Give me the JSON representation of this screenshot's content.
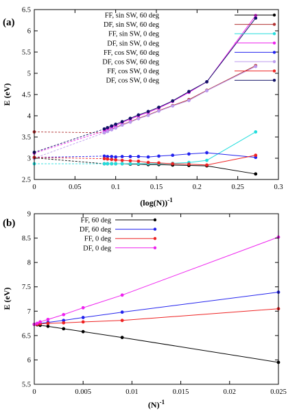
{
  "chart_data": [
    {
      "panel_label": "(a)",
      "type": "line",
      "xlabel": "(log(N))",
      "xlabel_sup": "-1",
      "ylabel": "E (eV)",
      "xlim": [
        0,
        0.3
      ],
      "ylim": [
        2.5,
        6.5
      ],
      "xticks": [
        0,
        0.05,
        0.1,
        0.15,
        0.2,
        0.25,
        0.3
      ],
      "xtick_labels": [
        "0",
        "0.05",
        "0.1",
        "0.15",
        "0.2",
        "0.25",
        "0.3"
      ],
      "yticks": [
        2.5,
        3,
        3.5,
        4,
        4.5,
        5,
        5.5,
        6,
        6.5
      ],
      "ytick_labels": [
        "2.5",
        "3",
        "3.5",
        "4",
        "4.5",
        "5",
        "5.5",
        "6",
        "6.5"
      ],
      "legend_position": "top-left",
      "extrapolation_dashed": true,
      "series": [
        {
          "name": "FF, sin SW, 60 deg",
          "color": "#000000",
          "x0": 3.01,
          "x": [
            0.086,
            0.09,
            0.095,
            0.1,
            0.108,
            0.118,
            0.128,
            0.14,
            0.153,
            0.17,
            0.19,
            0.212,
            0.272
          ],
          "y": [
            2.87,
            2.87,
            2.87,
            2.87,
            2.87,
            2.86,
            2.86,
            2.85,
            2.85,
            2.84,
            2.83,
            2.82,
            2.63
          ]
        },
        {
          "name": "DF, sin SW, 60 deg",
          "color": "#b03030",
          "x0": 3.62,
          "x": [
            0.086,
            0.09,
            0.095,
            0.1,
            0.108,
            0.118,
            0.128,
            0.14,
            0.153,
            0.17,
            0.19,
            0.212,
            0.272
          ],
          "y": [
            3.6,
            3.64,
            3.68,
            3.72,
            3.79,
            3.86,
            3.94,
            4.02,
            4.12,
            4.24,
            4.38,
            4.6,
            5.18
          ]
        },
        {
          "name": "FF, sin SW, 0 deg",
          "color": "#22dddd",
          "x0": 2.87,
          "x": [
            0.086,
            0.09,
            0.095,
            0.1,
            0.108,
            0.118,
            0.128,
            0.14,
            0.153,
            0.17,
            0.19,
            0.212,
            0.272
          ],
          "y": [
            2.87,
            2.87,
            2.87,
            2.87,
            2.87,
            2.87,
            2.87,
            2.87,
            2.87,
            2.88,
            2.9,
            2.95,
            3.62
          ]
        },
        {
          "name": "DF, sin SW, 0 deg",
          "color": "#ee22ee",
          "x0": 3.12,
          "x": [
            0.086,
            0.09,
            0.095,
            0.1,
            0.108,
            0.118,
            0.128,
            0.14,
            0.153,
            0.17,
            0.19,
            0.212,
            0.272
          ],
          "y": [
            3.64,
            3.68,
            3.72,
            3.77,
            3.84,
            3.92,
            4.0,
            4.08,
            4.18,
            4.34,
            4.55,
            4.8,
            6.36
          ]
        },
        {
          "name": "FF, cos SW, 60 deg",
          "color": "#2222ee",
          "x0": 3.02,
          "x": [
            0.086,
            0.09,
            0.095,
            0.1,
            0.108,
            0.118,
            0.128,
            0.14,
            0.153,
            0.17,
            0.19,
            0.212,
            0.272
          ],
          "y": [
            3.05,
            3.04,
            3.04,
            3.03,
            3.04,
            3.04,
            3.04,
            3.03,
            3.05,
            3.07,
            3.1,
            3.13,
            3.02
          ]
        },
        {
          "name": "DF, cos SW, 60 deg",
          "color": "#bb99ee",
          "x0": 3.0,
          "x": [
            0.086,
            0.09,
            0.095,
            0.1,
            0.108,
            0.118,
            0.128,
            0.14,
            0.153,
            0.17,
            0.19,
            0.212,
            0.272
          ],
          "y": [
            3.6,
            3.63,
            3.67,
            3.71,
            3.78,
            3.85,
            3.93,
            4.01,
            4.11,
            4.23,
            4.36,
            4.59,
            5.16
          ]
        },
        {
          "name": "FF, cos SW, 0 deg",
          "color": "#ee2222",
          "x0": 3.02,
          "x": [
            0.086,
            0.09,
            0.095,
            0.1,
            0.108,
            0.118,
            0.128,
            0.14,
            0.153,
            0.17,
            0.19,
            0.212,
            0.272
          ],
          "y": [
            2.99,
            2.98,
            2.97,
            2.96,
            2.95,
            2.94,
            2.93,
            2.9,
            2.89,
            2.87,
            2.86,
            2.84,
            3.07
          ]
        },
        {
          "name": "DF, cos SW, 0 deg",
          "color": "#111166",
          "x0": 3.14,
          "x": [
            0.086,
            0.09,
            0.095,
            0.1,
            0.108,
            0.118,
            0.128,
            0.14,
            0.153,
            0.17,
            0.19,
            0.212,
            0.272
          ],
          "y": [
            3.69,
            3.72,
            3.76,
            3.8,
            3.86,
            3.94,
            4.02,
            4.1,
            4.2,
            4.35,
            4.57,
            4.8,
            6.3
          ]
        }
      ]
    },
    {
      "panel_label": "(b)",
      "type": "line",
      "xlabel": "(N)",
      "xlabel_sup": "-1",
      "ylabel": "E (eV)",
      "xlim": [
        0,
        0.025
      ],
      "ylim": [
        5.5,
        9
      ],
      "xticks": [
        0,
        0.005,
        0.01,
        0.015,
        0.02,
        0.025
      ],
      "xtick_labels": [
        "0",
        "0.005",
        "0.01",
        "0.015",
        "0.02",
        "0.025"
      ],
      "yticks": [
        5.5,
        6,
        6.5,
        7,
        7.5,
        8,
        8.5,
        9
      ],
      "ytick_labels": [
        "5.5",
        "6",
        "6.5",
        "7",
        "7.5",
        "8",
        "8.5",
        "9"
      ],
      "legend_position": "top-left",
      "extrapolation_dashed": false,
      "series": [
        {
          "name": "FF, 60 deg",
          "color": "#000000",
          "x": [
            0,
            0.0003,
            0.0006,
            0.0014,
            0.003,
            0.005,
            0.009,
            0.025
          ],
          "y": [
            6.73,
            6.72,
            6.71,
            6.69,
            6.64,
            6.58,
            6.46,
            5.95
          ]
        },
        {
          "name": "DF, 60 deg",
          "color": "#2222ee",
          "x": [
            0,
            0.0003,
            0.0006,
            0.0014,
            0.003,
            0.005,
            0.009,
            0.025
          ],
          "y": [
            6.73,
            6.74,
            6.75,
            6.77,
            6.81,
            6.87,
            6.98,
            7.39
          ]
        },
        {
          "name": "FF, 0 deg",
          "color": "#ee2222",
          "x": [
            0,
            0.0003,
            0.0006,
            0.0014,
            0.003,
            0.005,
            0.009,
            0.025
          ],
          "y": [
            6.73,
            6.73,
            6.74,
            6.75,
            6.76,
            6.78,
            6.81,
            7.05
          ]
        },
        {
          "name": "DF, 0 deg",
          "color": "#ee22ee",
          "x": [
            0,
            0.0003,
            0.0006,
            0.0014,
            0.003,
            0.005,
            0.009,
            0.025
          ],
          "y": [
            6.73,
            6.75,
            6.78,
            6.83,
            6.93,
            7.07,
            7.33,
            8.52
          ]
        }
      ]
    }
  ]
}
